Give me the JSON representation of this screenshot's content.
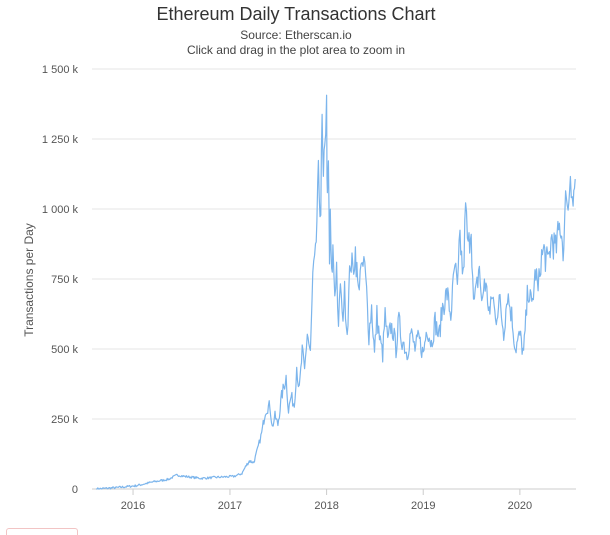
{
  "chart_data": {
    "type": "line",
    "title": "Ethereum Daily Transactions Chart",
    "subtitle": [
      "Source: Etherscan.io",
      "Click and drag in the plot area to zoom in"
    ],
    "xlabel": "",
    "ylabel": "Transactions per Day",
    "xlim": [
      "2015-07-30",
      "2020-07-31"
    ],
    "ylim": [
      0,
      1500000
    ],
    "y_ticks": [
      {
        "value": 0,
        "label": "0"
      },
      {
        "value": 250000,
        "label": "250 k"
      },
      {
        "value": 500000,
        "label": "500 k"
      },
      {
        "value": 750000,
        "label": "750 k"
      },
      {
        "value": 1000000,
        "label": "1 000 k"
      },
      {
        "value": 1250000,
        "label": "1 250 k"
      },
      {
        "value": 1500000,
        "label": "1 500 k"
      }
    ],
    "x_ticks": [
      {
        "value": "2016-01-01",
        "label": "2016"
      },
      {
        "value": "2017-01-01",
        "label": "2017"
      },
      {
        "value": "2018-01-01",
        "label": "2018"
      },
      {
        "value": "2019-01-01",
        "label": "2019"
      },
      {
        "value": "2020-01-01",
        "label": "2020"
      }
    ],
    "grid": true,
    "legend": "none",
    "series": [
      {
        "color": "#7cb5ec",
        "x": [
          "2015-08-15",
          "2015-11-01",
          "2016-01-15",
          "2016-03-15",
          "2016-05-15",
          "2016-06-15",
          "2016-07-15",
          "2016-09-15",
          "2016-11-15",
          "2017-01-15",
          "2017-02-15",
          "2017-03-01",
          "2017-03-15",
          "2017-04-01",
          "2017-04-15",
          "2017-05-01",
          "2017-05-15",
          "2017-06-01",
          "2017-06-10",
          "2017-06-20",
          "2017-07-01",
          "2017-07-15",
          "2017-08-01",
          "2017-08-10",
          "2017-08-20",
          "2017-09-01",
          "2017-09-10",
          "2017-09-20",
          "2017-10-01",
          "2017-10-10",
          "2017-10-20",
          "2017-11-01",
          "2017-11-10",
          "2017-11-20",
          "2017-12-01",
          "2017-12-10",
          "2017-12-15",
          "2017-12-20",
          "2017-12-25",
          "2018-01-01",
          "2018-01-04",
          "2018-01-08",
          "2018-01-12",
          "2018-01-15",
          "2018-01-20",
          "2018-01-25",
          "2018-02-01",
          "2018-02-08",
          "2018-02-15",
          "2018-02-22",
          "2018-03-01",
          "2018-03-10",
          "2018-03-20",
          "2018-04-01",
          "2018-04-10",
          "2018-04-20",
          "2018-05-01",
          "2018-05-08",
          "2018-05-15",
          "2018-05-22",
          "2018-06-01",
          "2018-06-10",
          "2018-06-20",
          "2018-07-01",
          "2018-07-10",
          "2018-07-20",
          "2018-08-01",
          "2018-08-10",
          "2018-08-20",
          "2018-09-01",
          "2018-09-10",
          "2018-09-20",
          "2018-10-01",
          "2018-10-10",
          "2018-10-20",
          "2018-11-01",
          "2018-11-15",
          "2018-12-01",
          "2018-12-15",
          "2019-01-01",
          "2019-01-15",
          "2019-02-01",
          "2019-02-15",
          "2019-03-01",
          "2019-03-15",
          "2019-04-01",
          "2019-04-15",
          "2019-05-01",
          "2019-05-10",
          "2019-05-20",
          "2019-06-01",
          "2019-06-10",
          "2019-06-20",
          "2019-07-01",
          "2019-07-10",
          "2019-07-20",
          "2019-08-01",
          "2019-08-10",
          "2019-08-20",
          "2019-09-01",
          "2019-09-10",
          "2019-09-20",
          "2019-10-01",
          "2019-10-15",
          "2019-11-01",
          "2019-11-15",
          "2019-12-01",
          "2019-12-15",
          "2020-01-01",
          "2020-01-15",
          "2020-02-01",
          "2020-02-15",
          "2020-03-01",
          "2020-03-10",
          "2020-03-20",
          "2020-04-01",
          "2020-04-15",
          "2020-05-01",
          "2020-05-15",
          "2020-06-01",
          "2020-06-15",
          "2020-06-25",
          "2020-07-01",
          "2020-07-10",
          "2020-07-20",
          "2020-07-28"
        ],
        "values": [
          0,
          5000,
          12000,
          25000,
          35000,
          50000,
          45000,
          38000,
          42000,
          45000,
          55000,
          80000,
          100000,
          95000,
          140000,
          200000,
          280000,
          300000,
          220000,
          260000,
          230000,
          330000,
          400000,
          280000,
          330000,
          300000,
          440000,
          350000,
          490000,
          420000,
          560000,
          480000,
          750000,
          820000,
          1100000,
          1000000,
          1300000,
          1050000,
          1280000,
          1350000,
          1000000,
          1150000,
          800000,
          950000,
          750000,
          850000,
          700000,
          800000,
          550000,
          750000,
          600000,
          700000,
          560000,
          820000,
          780000,
          850000,
          700000,
          800000,
          760000,
          820000,
          700000,
          550000,
          650000,
          480000,
          620000,
          540000,
          480000,
          620000,
          520000,
          580000,
          560000,
          500000,
          600000,
          540000,
          520000,
          480000,
          560000,
          500000,
          540000,
          480000,
          580000,
          520000,
          600000,
          540000,
          650000,
          700000,
          620000,
          800000,
          700000,
          900000,
          750000,
          1000000,
          850000,
          950000,
          650000,
          700000,
          800000,
          650000,
          750000,
          680000,
          620000,
          700000,
          600000,
          680000,
          560000,
          700000,
          620000,
          500000,
          550000,
          480000,
          720000,
          650000,
          780000,
          700000,
          820000,
          850000,
          800000,
          900000,
          850000,
          950000,
          850000,
          1100000,
          980000,
          1150000,
          1020000,
          1100000
        ]
      }
    ]
  }
}
